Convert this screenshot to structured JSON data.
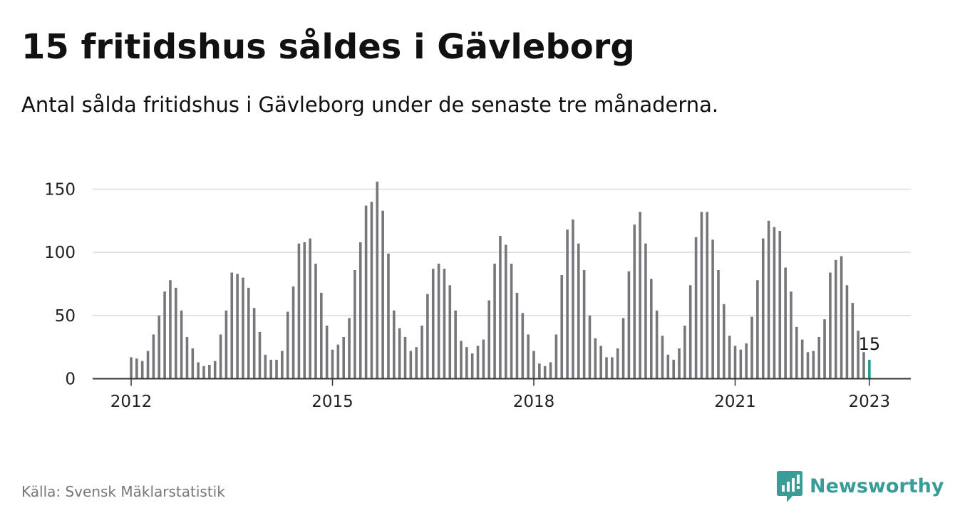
{
  "header": {
    "title": "15 fritidshus såldes i Gävleborg",
    "subtitle": "Antal sålda fritidshus i Gävleborg under de senaste tre månaderna."
  },
  "footer": {
    "source": "Källa: Svensk Mäklarstatistik",
    "brand": "Newsworthy",
    "brand_icon": "newsworthy-logo-icon"
  },
  "colors": {
    "bar": "#77777b",
    "highlight": "#1a9e8f",
    "grid": "#dcdcdc",
    "axis": "#333333",
    "brand": "#3a9c97"
  },
  "chart_data": {
    "type": "bar",
    "title": "15 fritidshus såldes i Gävleborg",
    "subtitle": "Antal sålda fritidshus i Gävleborg under de senaste tre månaderna.",
    "xlabel": "",
    "ylabel": "",
    "x_start": "2012-01",
    "x_unit": "month",
    "x_ticks": [
      "2012",
      "2015",
      "2018",
      "2021",
      "2023"
    ],
    "y_ticks": [
      0,
      50,
      100,
      150
    ],
    "ylim": [
      0,
      160
    ],
    "grid": true,
    "legend": "none",
    "highlight_label": "15",
    "values": [
      17,
      16,
      14,
      22,
      35,
      50,
      69,
      78,
      72,
      54,
      33,
      24,
      13,
      10,
      11,
      14,
      35,
      54,
      84,
      83,
      80,
      72,
      56,
      37,
      19,
      15,
      15,
      22,
      53,
      73,
      107,
      108,
      111,
      91,
      68,
      42,
      23,
      27,
      33,
      48,
      86,
      108,
      137,
      140,
      156,
      133,
      99,
      54,
      40,
      33,
      22,
      25,
      42,
      67,
      87,
      91,
      87,
      74,
      54,
      30,
      25,
      20,
      26,
      31,
      62,
      91,
      113,
      106,
      91,
      68,
      52,
      35,
      22,
      12,
      10,
      13,
      35,
      82,
      118,
      126,
      107,
      86,
      50,
      32,
      26,
      17,
      17,
      24,
      48,
      85,
      122,
      132,
      107,
      79,
      54,
      34,
      19,
      15,
      24,
      42,
      74,
      112,
      132,
      132,
      110,
      86,
      59,
      34,
      26,
      23,
      28,
      49,
      78,
      111,
      125,
      120,
      117,
      88,
      69,
      41,
      31,
      21,
      22,
      33,
      47,
      84,
      94,
      97,
      74,
      60,
      38,
      21,
      15
    ]
  }
}
